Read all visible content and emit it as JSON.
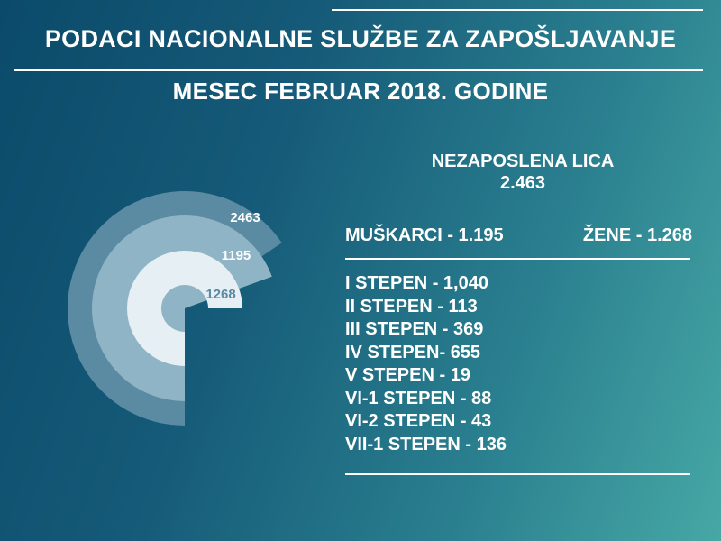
{
  "header": {
    "title": "PODACI NACIONALNE SLUŽBE ZA ZAPOŠLJAVANJE",
    "subtitle": "MESEC FEBRUAR 2018. GODINE"
  },
  "summary": {
    "unemployed_label": "NEZAPOSLENA LICA",
    "unemployed_total": "2.463",
    "men": "MUŠKARCI - 1.195",
    "women": "ŽENE - 1.268"
  },
  "levels": [
    "I STEPEN - 1,040",
    "II STEPEN - 113",
    "III STEPEN - 369",
    "IV STEPEN- 655",
    "V STEPEN - 19",
    "VI-1 STEPEN - 88",
    "VI-2 STEPEN - 43",
    "VII-1 STEPEN - 136"
  ],
  "chart_data": {
    "type": "radial-bar",
    "rings": [
      {
        "label": "2463",
        "value": 2463,
        "color": "#5b8aa3",
        "label_color": "#ffffff"
      },
      {
        "label": "1195",
        "value": 1195,
        "color": "#8fb4c5",
        "label_color": "#ffffff"
      },
      {
        "label": "1268",
        "value": 1268,
        "color": "#e6eff3",
        "label_color": "#5b8aa3"
      }
    ],
    "colors": {
      "line": "#ffffff"
    }
  }
}
